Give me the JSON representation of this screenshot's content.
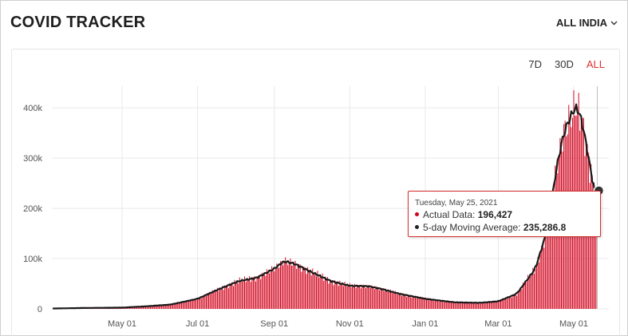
{
  "header": {
    "title": "COVID TRACKER",
    "region": "ALL INDIA"
  },
  "ranges": [
    {
      "label": "7D",
      "active": false
    },
    {
      "label": "30D",
      "active": false
    },
    {
      "label": "ALL",
      "active": true
    }
  ],
  "tooltip": {
    "date": "Tuesday, May 25, 2021",
    "actual_label": "Actual Data:",
    "actual_value": "196,427",
    "avg_label": "5-day Moving Average:",
    "avg_value": "235,286.8"
  },
  "colors": {
    "bar": "#d0021b",
    "line": "#1a1a1a",
    "accent": "#e03131",
    "grid": "#e9e9e9"
  },
  "chart_data": {
    "type": "bar",
    "series": [
      {
        "name": "Actual Data",
        "type": "bar"
      },
      {
        "name": "5-day Moving Average",
        "type": "line"
      }
    ],
    "ylim": [
      0,
      440000
    ],
    "yticks": [
      0,
      100000,
      200000,
      300000,
      400000
    ],
    "ytick_labels": [
      "0",
      "100k",
      "200k",
      "300k",
      "400k"
    ],
    "x_ticks": [
      {
        "label": "May 01",
        "day": 61
      },
      {
        "label": "Jul 01",
        "day": 122
      },
      {
        "label": "Sep 01",
        "day": 184
      },
      {
        "label": "Nov 01",
        "day": 245
      },
      {
        "label": "Jan 01",
        "day": 306
      },
      {
        "label": "Mar 01",
        "day": 365
      },
      {
        "label": "May 01",
        "day": 426
      }
    ],
    "x_range_days": [
      0,
      450
    ],
    "daily_anchors": [
      [
        0,
        500
      ],
      [
        30,
        1800
      ],
      [
        61,
        2500
      ],
      [
        80,
        5000
      ],
      [
        100,
        8500
      ],
      [
        122,
        20000
      ],
      [
        140,
        40000
      ],
      [
        155,
        55000
      ],
      [
        170,
        62000
      ],
      [
        184,
        80000
      ],
      [
        192,
        95000
      ],
      [
        200,
        90000
      ],
      [
        215,
        72000
      ],
      [
        230,
        55000
      ],
      [
        245,
        46000
      ],
      [
        260,
        45000
      ],
      [
        270,
        40000
      ],
      [
        285,
        30000
      ],
      [
        306,
        20000
      ],
      [
        330,
        13000
      ],
      [
        350,
        12000
      ],
      [
        365,
        15000
      ],
      [
        380,
        30000
      ],
      [
        395,
        80000
      ],
      [
        405,
        160000
      ],
      [
        412,
        280000
      ],
      [
        418,
        350000
      ],
      [
        423,
        380000
      ],
      [
        428,
        405000
      ],
      [
        432,
        380000
      ],
      [
        436,
        330000
      ],
      [
        440,
        270000
      ],
      [
        443,
        235000
      ],
      [
        445,
        196427
      ]
    ],
    "highlight_day": 445,
    "highlight_avg": 235286.8
  }
}
